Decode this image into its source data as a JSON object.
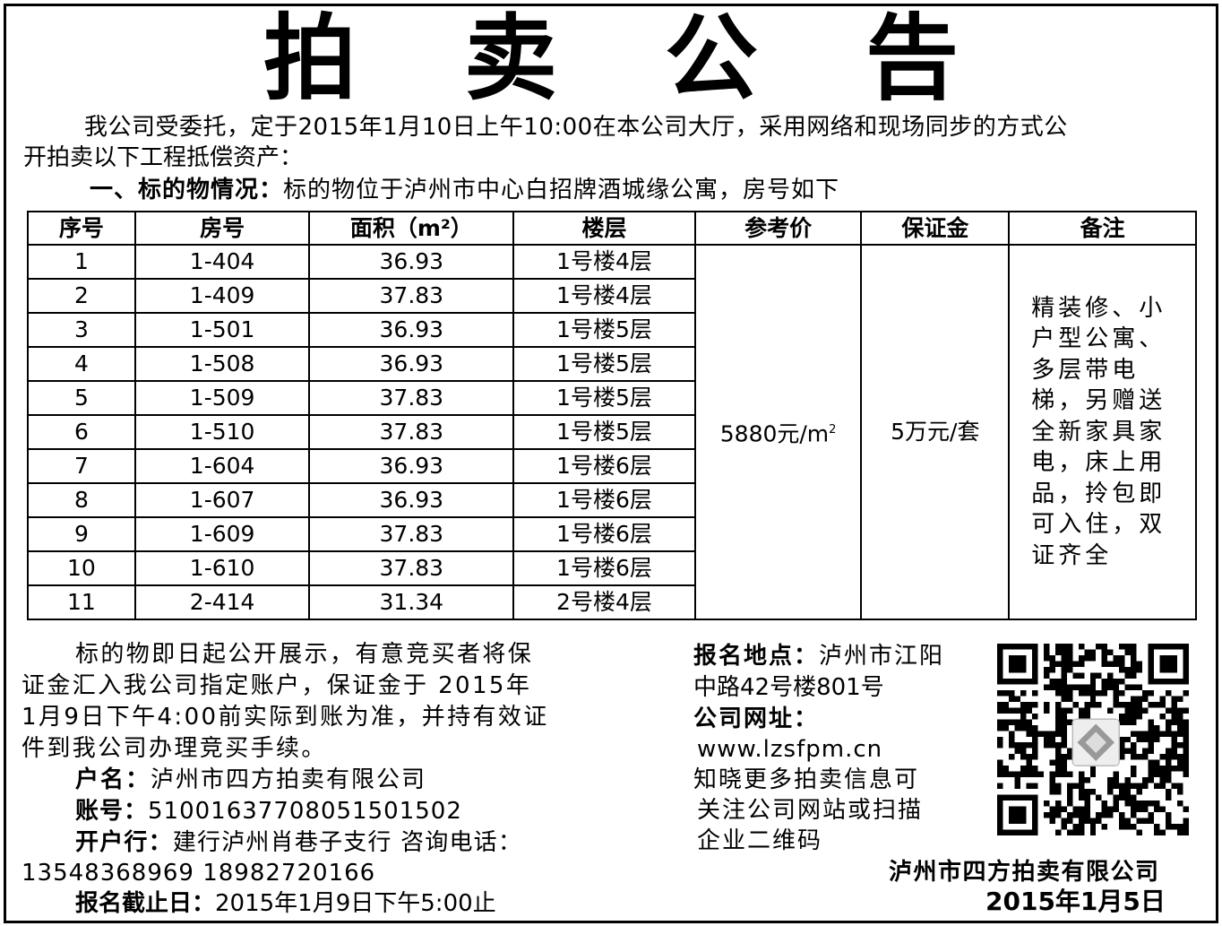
{
  "title": "拍卖公告",
  "intro": {
    "line1": "我公司受委托，定于2015年1月10日上午10:00在本公司大厅，采用网络和现场同步的方式公",
    "line2": "开拍卖以下工程抵偿资产："
  },
  "section1": {
    "label": "一、标的物情况：",
    "text": "标的物位于泸州市中心白招牌酒城缘公寓，房号如下"
  },
  "table": {
    "headers": [
      "序号",
      "房号",
      "面积（m²）",
      "楼层",
      "参考价",
      "保证金",
      "备注"
    ],
    "rows": [
      [
        "1",
        "1-404",
        "36.93",
        "1号楼4层"
      ],
      [
        "2",
        "1-409",
        "37.83",
        "1号楼4层"
      ],
      [
        "3",
        "1-501",
        "36.93",
        "1号楼5层"
      ],
      [
        "4",
        "1-508",
        "36.93",
        "1号楼5层"
      ],
      [
        "5",
        "1-509",
        "37.83",
        "1号楼5层"
      ],
      [
        "6",
        "1-510",
        "37.83",
        "1号楼5层"
      ],
      [
        "7",
        "1-604",
        "36.93",
        "1号楼6层"
      ],
      [
        "8",
        "1-607",
        "36.93",
        "1号楼6层"
      ],
      [
        "9",
        "1-609",
        "37.83",
        "1号楼6层"
      ],
      [
        "10",
        "1-610",
        "37.83",
        "1号楼6层"
      ],
      [
        "11",
        "2-414",
        "31.34",
        "2号楼4层"
      ]
    ],
    "price": "5880元/m",
    "price_sup": "2",
    "deposit": "5万元/套",
    "note": "精装修、小户型公寓、多层带电梯，另赠送全新家具家电，床上用品，拎包即可入住，双证齐全"
  },
  "left": {
    "para": [
      "标的物即日起公开展示，有意竞买者将保",
      "证金汇入我公司指定账户，保证金于 2015年",
      "1月9日下午4:00前实际到账为准，并持有效证",
      "件到我公司办理竞买手续。"
    ],
    "account_name_label": "户名：",
    "account_name": "泸州市四方拍卖有限公司",
    "account_no_label": "账号：",
    "account_no": "51001637708051501502",
    "bank_label": "开户行：",
    "bank": "建行泸州肖巷子支行 咨询电话：",
    "phones": "13548368969 18982720166",
    "deadline_label": "报名截止日：",
    "deadline": "2015年1月9日下午5:00止"
  },
  "right": {
    "location_label": "报名地点：",
    "location1": "泸州市江阳",
    "location2": "中路42号楼801号",
    "website_label": "公司网址：",
    "website": "www.lzsfpm.cn",
    "info": [
      "知晓更多拍卖信息可",
      "关注公司网站或扫描",
      "企业二维码"
    ],
    "company": "泸州市四方拍卖有限公司",
    "date": "2015年1月5日"
  }
}
